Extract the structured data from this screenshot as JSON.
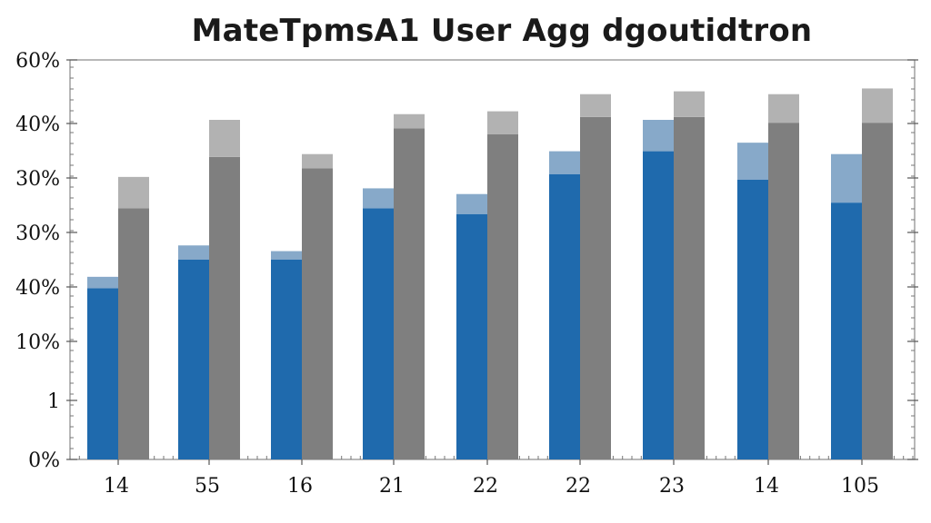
{
  "chart_data": {
    "type": "bar",
    "title": "MateTpmsA1 User Agg dgoutidtron",
    "xlabel": "",
    "ylabel": "",
    "categories": [
      "14",
      "55",
      "16",
      "21",
      "22",
      "22",
      "23",
      "14",
      "105"
    ],
    "y_tick_labels": [
      "0%",
      "1",
      "10%",
      "40%",
      "30%",
      "30%",
      "40%",
      "60%"
    ],
    "ylim": [
      0,
      7
    ],
    "series": [
      {
        "color": "#1f6aad",
        "values": [
          3.0,
          3.5,
          3.5,
          4.4,
          4.3,
          5.0,
          5.4,
          4.9,
          4.5
        ]
      },
      {
        "color": "#87a9c9",
        "values": [
          0.2,
          0.25,
          0.15,
          0.35,
          0.35,
          0.4,
          0.55,
          0.65,
          0.85
        ]
      },
      {
        "color": "#7f7f7f",
        "values": [
          4.4,
          5.3,
          5.1,
          5.8,
          5.7,
          6.0,
          6.0,
          5.9,
          5.9
        ]
      },
      {
        "color": "#b2b2b2",
        "values": [
          0.55,
          0.65,
          0.25,
          0.25,
          0.4,
          0.4,
          0.45,
          0.5,
          0.6
        ]
      }
    ],
    "grid": false,
    "legend": "none"
  }
}
